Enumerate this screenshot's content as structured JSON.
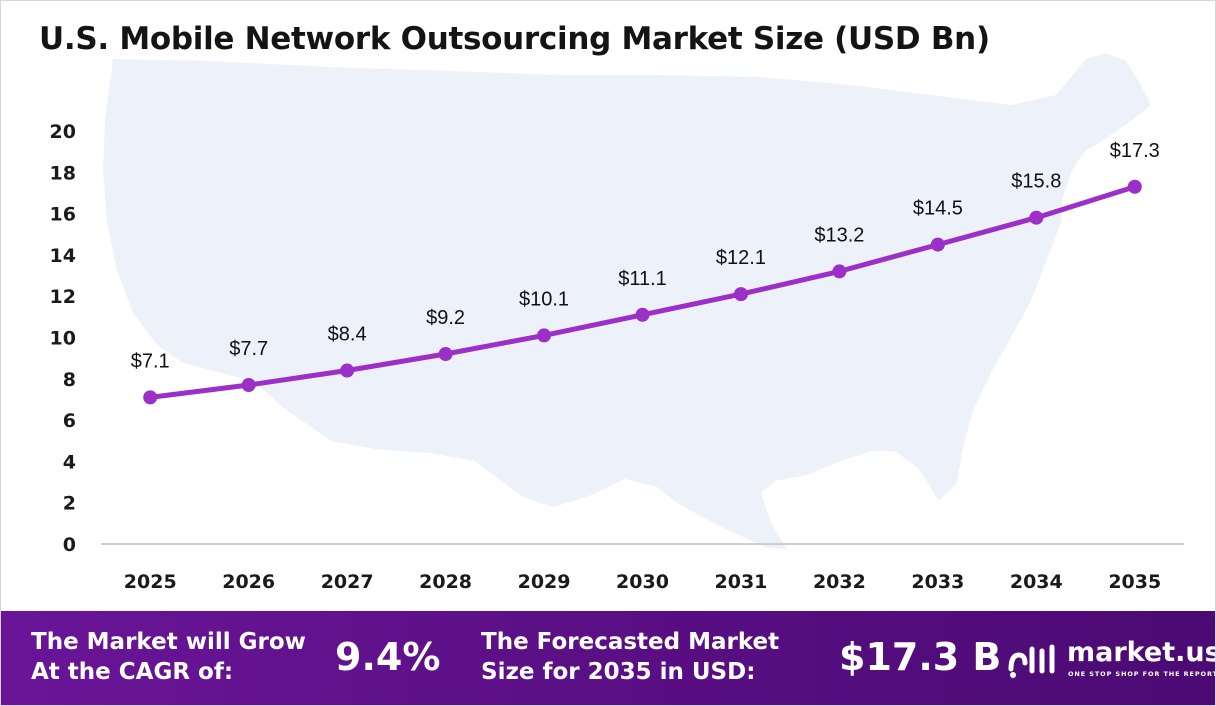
{
  "title": "U.S. Mobile Network Outsourcing Market Size (USD Bn)",
  "chart_data": {
    "type": "line",
    "title": "U.S. Mobile Network Outsourcing Market Size (USD Bn)",
    "categories": [
      "2025",
      "2026",
      "2027",
      "2028",
      "2029",
      "2030",
      "2031",
      "2032",
      "2033",
      "2034",
      "2035"
    ],
    "series": [
      {
        "values": [
          7.1,
          7.7,
          8.4,
          9.2,
          10.1,
          11.1,
          12.1,
          13.2,
          14.5,
          15.8,
          17.3
        ]
      }
    ],
    "data_labels": [
      "$7.1",
      "$7.7",
      "$8.4",
      "$9.2",
      "$10.1",
      "$11.1",
      "$12.1",
      "$13.2",
      "$14.5",
      "$15.8",
      "$17.3"
    ],
    "y_ticks": [
      "0",
      "2",
      "4",
      "6",
      "8",
      "10",
      "12",
      "14",
      "16",
      "18",
      "20"
    ],
    "ylim": [
      0,
      20
    ],
    "xlabel": "",
    "ylabel": "",
    "grid": false,
    "legend": "none",
    "line_color": "#9b2fc7",
    "background_map": "united-states-map"
  },
  "footer": {
    "cagr_label_line1": "The Market will Grow",
    "cagr_label_line2": "At the CAGR of:",
    "cagr_value": "9.4%",
    "forecast_label_line1": "The Forecasted Market",
    "forecast_label_line2": "Size for 2035 in USD:",
    "forecast_value": "$17.3 B",
    "logo_icon": "market-us-logo-icon",
    "logo_name": "market.us",
    "logo_tagline": "ONE STOP SHOP FOR THE REPORTS",
    "colors": {
      "background": "#5a0f84",
      "text": "#ffffff"
    }
  }
}
